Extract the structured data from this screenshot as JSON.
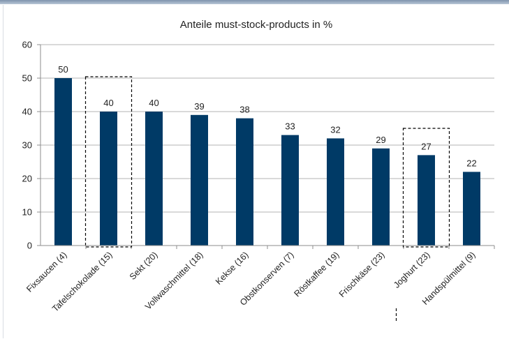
{
  "chart_data": {
    "type": "bar",
    "title": "Anteile must-stock-products in %",
    "categories": [
      "Fixsaucen (4)",
      "Tafelschokolade (15)",
      "Sekt (20)",
      "Vollwaschmittel (18)",
      "Kekse (16)",
      "Obstkonserven (7)",
      "Röstkaffee (19)",
      "Frischkäse (23)",
      "Joghurt (23)",
      "Handspülmittel (9)"
    ],
    "values": [
      50,
      40,
      40,
      39,
      38,
      33,
      32,
      29,
      27,
      22
    ],
    "value_labels": [
      "50",
      "40",
      "40",
      "39",
      "38",
      "33",
      "32",
      "29",
      "27",
      "22"
    ],
    "ylim": [
      0,
      60
    ],
    "yticks": [
      "0",
      "10",
      "20",
      "30",
      "40",
      "50",
      "60"
    ],
    "grid": true,
    "legend": "none",
    "highlighted": [
      "Tafelschokolade (15)",
      "Joghurt (23)"
    ],
    "colors": {
      "bar": "#003a66",
      "grid": "#b3b3b3",
      "axis": "#8c8c8c",
      "highlight_border": "#000000"
    }
  }
}
